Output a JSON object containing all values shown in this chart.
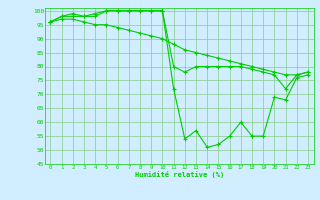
{
  "xlabel": "Humidité relative (%)",
  "hours": [
    0,
    1,
    2,
    3,
    4,
    5,
    6,
    7,
    8,
    9,
    10,
    11,
    12,
    13,
    14,
    15,
    16,
    17,
    18,
    19,
    20,
    21,
    22,
    23
  ],
  "line1": [
    96,
    98,
    98,
    98,
    98,
    100,
    100,
    100,
    100,
    100,
    100,
    72,
    54,
    57,
    51,
    52,
    55,
    60,
    55,
    55,
    69,
    68,
    76,
    77
  ],
  "line2": [
    96,
    98,
    99,
    98,
    99,
    100,
    100,
    100,
    100,
    100,
    100,
    80,
    78,
    80,
    80,
    80,
    80,
    80,
    79,
    78,
    77,
    72,
    77,
    78
  ],
  "line3": [
    96,
    97,
    97,
    96,
    95,
    95,
    94,
    93,
    92,
    91,
    90,
    88,
    86,
    85,
    84,
    83,
    82,
    81,
    80,
    79,
    78,
    77,
    77,
    78
  ],
  "line_color": "#00cc00",
  "bg_color": "#d0eeff",
  "grid_color": "#88cc88",
  "ylim": [
    45,
    101
  ],
  "yticks": [
    45,
    50,
    55,
    60,
    65,
    70,
    75,
    80,
    85,
    90,
    95,
    100
  ],
  "xticks": [
    0,
    1,
    2,
    3,
    4,
    5,
    6,
    7,
    8,
    9,
    10,
    11,
    12,
    13,
    14,
    15,
    16,
    17,
    18,
    19,
    20,
    21,
    22,
    23
  ]
}
